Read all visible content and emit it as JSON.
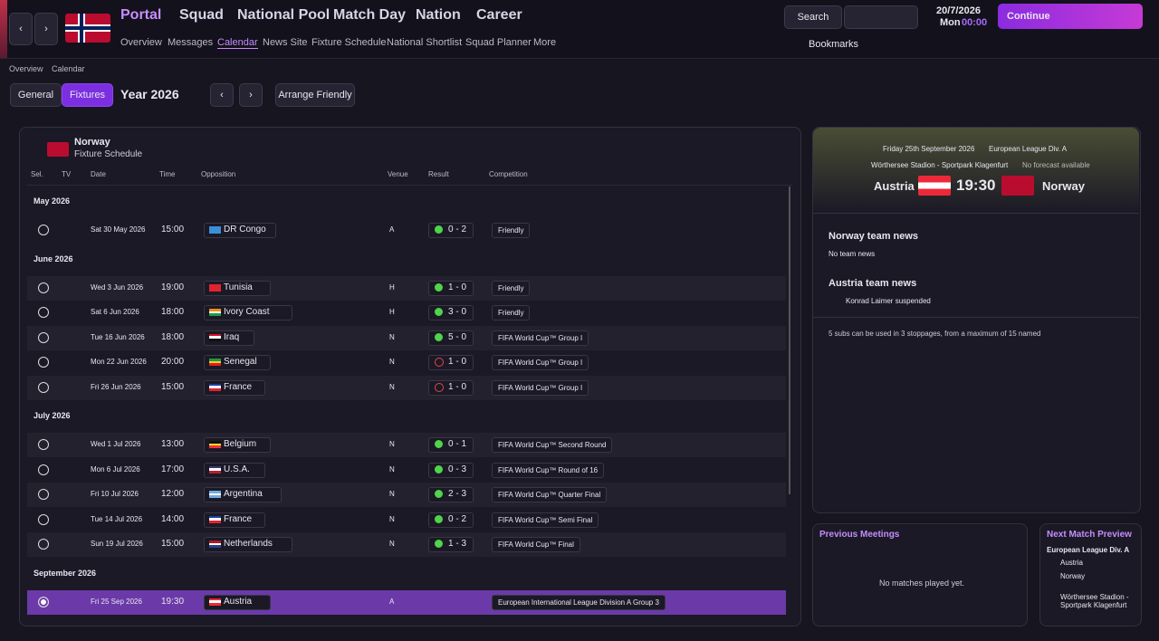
{
  "nav": {
    "main": [
      "Portal",
      "Squad",
      "National Pool",
      "Match Day",
      "Nation",
      "Career"
    ],
    "sub": [
      "Overview",
      "Messages",
      "Calendar",
      "News Site",
      "Fixture Schedule",
      "National Shortlist",
      "Squad Planner",
      "More"
    ],
    "search": "Search",
    "date": "20/7/2026",
    "day": "Mon",
    "time": "00:00",
    "continue": "Continue",
    "bookmarks": "Bookmarks"
  },
  "breadcrumb": [
    "Overview",
    "Calendar"
  ],
  "toolbar": {
    "tabs": [
      "General",
      "Fixtures"
    ],
    "year": "Year 2026",
    "arrange": "Arrange Friendly"
  },
  "fixtures": {
    "team": "Norway",
    "subtitle": "Fixture Schedule",
    "columns": [
      "Sel.",
      "TV",
      "Date",
      "Time",
      "Opposition",
      "Venue",
      "Result",
      "Competition"
    ],
    "groups": [
      {
        "month": "May 2026",
        "rows": [
          {
            "date": "Sat 30 May 2026",
            "time": "15:00",
            "opposition": "DR Congo",
            "flag": [
              "#3b8fd9",
              "#3b8fd9",
              "#3b8fd9"
            ],
            "venue": "A",
            "result": "0 - 2",
            "outcome": "win",
            "competition": "Friendly"
          }
        ]
      },
      {
        "month": "June 2026",
        "rows": [
          {
            "date": "Wed 3 Jun 2026",
            "time": "19:00",
            "opposition": "Tunisia",
            "flag": [
              "#e0242e",
              "#e0242e",
              "#e0242e"
            ],
            "venue": "H",
            "result": "1 - 0",
            "outcome": "win",
            "competition": "Friendly"
          },
          {
            "date": "Sat 6 Jun 2026",
            "time": "18:00",
            "opposition": "Ivory Coast",
            "flag": [
              "#f28c1c",
              "#ffffff",
              "#1a9b4b"
            ],
            "venue": "H",
            "result": "3 - 0",
            "outcome": "win",
            "competition": "Friendly"
          },
          {
            "date": "Tue 16 Jun 2026",
            "time": "18:00",
            "opposition": "Iraq",
            "flag": [
              "#ce1126",
              "#ffffff",
              "#111111"
            ],
            "venue": "N",
            "result": "5 - 0",
            "outcome": "win",
            "competition": "FIFA World Cup™ Group I"
          },
          {
            "date": "Mon 22 Jun 2026",
            "time": "20:00",
            "opposition": "Senegal",
            "flag": [
              "#1a9b4b",
              "#fcd116",
              "#e31b23"
            ],
            "venue": "N",
            "result": "1 - 0",
            "outcome": "loss",
            "competition": "FIFA World Cup™ Group I"
          },
          {
            "date": "Fri 26 Jun 2026",
            "time": "15:00",
            "opposition": "France",
            "flag": [
              "#1f3fa0",
              "#ffffff",
              "#e0242e"
            ],
            "venue": "N",
            "result": "1 - 0",
            "outcome": "loss",
            "competition": "FIFA World Cup™ Group I"
          }
        ]
      },
      {
        "month": "July 2026",
        "rows": [
          {
            "date": "Wed 1 Jul 2026",
            "time": "13:00",
            "opposition": "Belgium",
            "flag": [
              "#111111",
              "#fdda24",
              "#ef3340"
            ],
            "venue": "N",
            "result": "0 - 1",
            "outcome": "win",
            "competition": "FIFA World Cup™ Second Round"
          },
          {
            "date": "Mon 6 Jul 2026",
            "time": "17:00",
            "opposition": "U.S.A.",
            "flag": [
              "#3c3b6e",
              "#ffffff",
              "#b22234"
            ],
            "venue": "N",
            "result": "0 - 3",
            "outcome": "win",
            "competition": "FIFA World Cup™ Round of 16"
          },
          {
            "date": "Fri 10 Jul 2026",
            "time": "12:00",
            "opposition": "Argentina",
            "flag": [
              "#74acdf",
              "#ffffff",
              "#74acdf"
            ],
            "venue": "N",
            "result": "2 - 3",
            "outcome": "win",
            "competition": "FIFA World Cup™ Quarter Final"
          },
          {
            "date": "Tue 14 Jul 2026",
            "time": "14:00",
            "opposition": "France",
            "flag": [
              "#1f3fa0",
              "#ffffff",
              "#e0242e"
            ],
            "venue": "N",
            "result": "0 - 2",
            "outcome": "win",
            "competition": "FIFA World Cup™ Semi Final"
          },
          {
            "date": "Sun 19 Jul 2026",
            "time": "15:00",
            "opposition": "Netherlands",
            "flag": [
              "#ae1c28",
              "#ffffff",
              "#21468b"
            ],
            "venue": "N",
            "result": "1 - 3",
            "outcome": "win",
            "competition": "FIFA World Cup™ Final"
          }
        ]
      },
      {
        "month": "September 2026",
        "rows": [
          {
            "date": "Fri 25 Sep 2026",
            "time": "19:30",
            "opposition": "Austria",
            "flag": [
              "#ed2939",
              "#ffffff",
              "#ed2939"
            ],
            "venue": "A",
            "competition": "European International League Division A Group 3",
            "selected": true
          }
        ]
      }
    ]
  },
  "match": {
    "date": "Friday 25th September 2026",
    "competition": "European League Div. A",
    "stadium": "Wörthersee Stadion - Sportpark Klagenfurt",
    "forecast": "No forecast available",
    "home": "Austria",
    "time": "19:30",
    "away": "Norway"
  },
  "news": [
    {
      "title": "Norway team news",
      "text": "No team news"
    },
    {
      "title": "Austria team news",
      "text": "Konrad Laimer suspended"
    }
  ],
  "subs_note": "5 subs can be used in 3 stoppages, from a maximum of 15 named",
  "previous": {
    "title": "Previous Meetings",
    "text": "No matches played yet."
  },
  "preview": {
    "title": "Next Match Preview",
    "competition": "European League Div. A",
    "teams": [
      "Austria",
      "Norway"
    ],
    "stadium": "Wörthersee Stadion - Sportpark Klagenfurt"
  }
}
